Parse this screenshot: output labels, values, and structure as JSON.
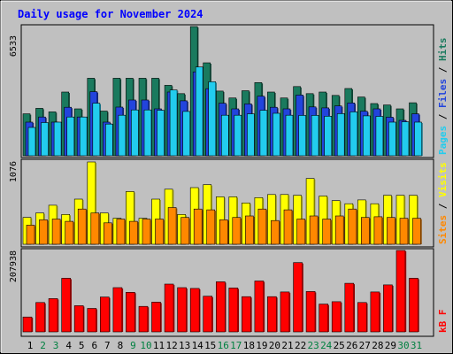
{
  "chart_data": [
    {
      "type": "bar",
      "title": "Daily usage for November 2024",
      "categories": [
        "1",
        "2",
        "3",
        "4",
        "5",
        "6",
        "7",
        "8",
        "9",
        "10",
        "11",
        "12",
        "13",
        "14",
        "15",
        "16",
        "17",
        "18",
        "19",
        "20",
        "21",
        "22",
        "23",
        "24",
        "25",
        "26",
        "27",
        "28",
        "29",
        "30",
        "31"
      ],
      "weekend_days": [
        "2",
        "3",
        "9",
        "10",
        "16",
        "17",
        "23",
        "24",
        "30",
        "31"
      ],
      "ymax_label": "6533",
      "ylim": [
        0,
        6533
      ],
      "series": [
        {
          "name": "Hits",
          "color": "#1a7a5e",
          "values": [
            2120,
            2400,
            2220,
            3220,
            2370,
            3920,
            2260,
            3920,
            3920,
            3920,
            3920,
            3560,
            3140,
            6533,
            4700,
            3270,
            2920,
            3290,
            3700,
            3220,
            2920,
            3500,
            3140,
            3220,
            3050,
            3400,
            2970,
            2640,
            2570,
            2370,
            2680
          ]
        },
        {
          "name": "Files",
          "color": "#2244dd",
          "values": [
            1700,
            1960,
            1700,
            2450,
            1960,
            3240,
            1700,
            2460,
            2820,
            2820,
            2370,
            3220,
            2780,
            4240,
            3390,
            2660,
            2370,
            2620,
            3010,
            2450,
            2370,
            3070,
            2470,
            2420,
            2520,
            2670,
            2250,
            2370,
            1950,
            1790,
            2120
          ]
        },
        {
          "name": "Pages",
          "color": "#22ccee",
          "values": [
            1430,
            1680,
            1700,
            1960,
            1960,
            2660,
            1600,
            2050,
            2320,
            2320,
            2300,
            3330,
            2240,
            4490,
            3740,
            2050,
            2050,
            2120,
            2300,
            2150,
            2050,
            2040,
            2040,
            2000,
            2130,
            2220,
            2020,
            1990,
            1700,
            1720,
            1700
          ]
        }
      ]
    },
    {
      "type": "bar",
      "ymax_label": "1076",
      "ylim": [
        0,
        1076
      ],
      "series": [
        {
          "name": "Visits",
          "color": "#ffff00",
          "values": [
            350,
            410,
            510,
            390,
            590,
            1076,
            410,
            340,
            690,
            340,
            590,
            720,
            390,
            740,
            780,
            620,
            620,
            540,
            610,
            650,
            650,
            640,
            860,
            630,
            570,
            530,
            580,
            530,
            640,
            640,
            640
          ]
        },
        {
          "name": "Sites",
          "color": "#ff8800",
          "values": [
            250,
            320,
            330,
            300,
            460,
            410,
            280,
            330,
            300,
            330,
            330,
            480,
            350,
            460,
            450,
            320,
            350,
            370,
            460,
            310,
            450,
            330,
            370,
            330,
            370,
            460,
            350,
            360,
            350,
            340,
            340
          ]
        }
      ]
    },
    {
      "type": "bar",
      "ymax_label": "207938",
      "ylim": [
        0,
        207938
      ],
      "series": [
        {
          "name": "KB F",
          "color": "#ff0000",
          "values": [
            38000,
            75000,
            85000,
            137000,
            67000,
            60000,
            89000,
            113000,
            101000,
            65000,
            76000,
            122000,
            113000,
            111000,
            91000,
            128000,
            112000,
            90000,
            130000,
            90000,
            102000,
            177000,
            103000,
            71000,
            77000,
            124000,
            75000,
            102000,
            120000,
            207938,
            137000
          ]
        }
      ]
    }
  ],
  "legend": {
    "top": {
      "pages": "Pages",
      "sep1": "/",
      "files": "Files",
      "sep2": "/",
      "hits": "Hits"
    },
    "mid": {
      "sites": "Sites",
      "sep1": "/",
      "visits": "Visits"
    },
    "bottom": {
      "kbf": "kB F"
    }
  },
  "colors": {
    "background": "#c0c0c0",
    "title": "#0000ff",
    "panel": "#c0c0c0",
    "weekday_label": "#000000",
    "weekend_label": "#008040"
  }
}
